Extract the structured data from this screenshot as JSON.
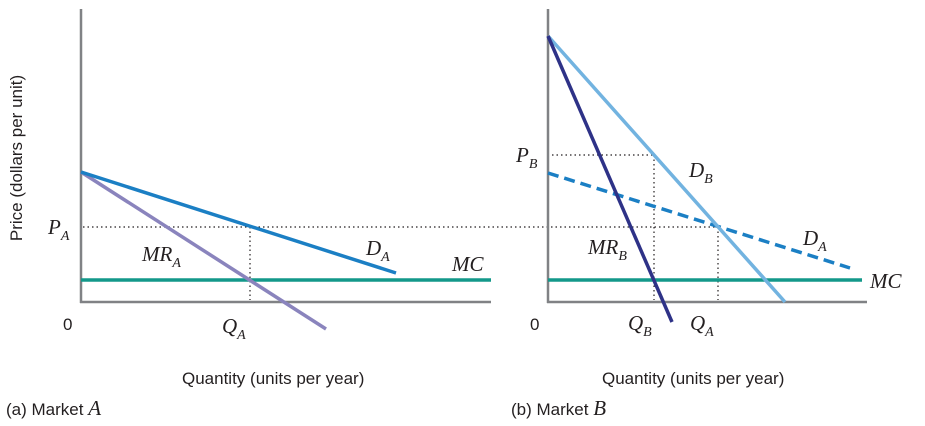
{
  "y_axis_label": "Price (dollars per unit)",
  "panel_a": {
    "caption_prefix": "(a) Market ",
    "caption_var": "A",
    "x_axis_label": "Quantity (units per year)",
    "origin_label": "0",
    "price_label": {
      "main": "P",
      "sub": "A"
    },
    "quantity_label": {
      "main": "Q",
      "sub": "A"
    },
    "demand_label": {
      "main": "D",
      "sub": "A"
    },
    "mr_label": {
      "main": "MR",
      "sub": "A"
    },
    "mc_label": "MC"
  },
  "panel_b": {
    "caption_prefix": "(b) Market ",
    "caption_var": "B",
    "x_axis_label": "Quantity (units per year)",
    "origin_label": "0",
    "price_label": {
      "main": "P",
      "sub": "B"
    },
    "quantity_b_label": {
      "main": "Q",
      "sub": "B"
    },
    "quantity_a_label": {
      "main": "Q",
      "sub": "A"
    },
    "demand_b_label": {
      "main": "D",
      "sub": "B"
    },
    "demand_a_label": {
      "main": "D",
      "sub": "A"
    },
    "mr_label": {
      "main": "MR",
      "sub": "B"
    },
    "mc_label": "MC"
  },
  "colors": {
    "demand_a": "#1b7fc4",
    "mr_a": "#8a84bd",
    "mc": "#13988a",
    "demand_b": "#72b3e0",
    "mr_b": "#2e3287",
    "demand_a_dashed": "#1b7fc4",
    "axis": "#808285"
  }
}
